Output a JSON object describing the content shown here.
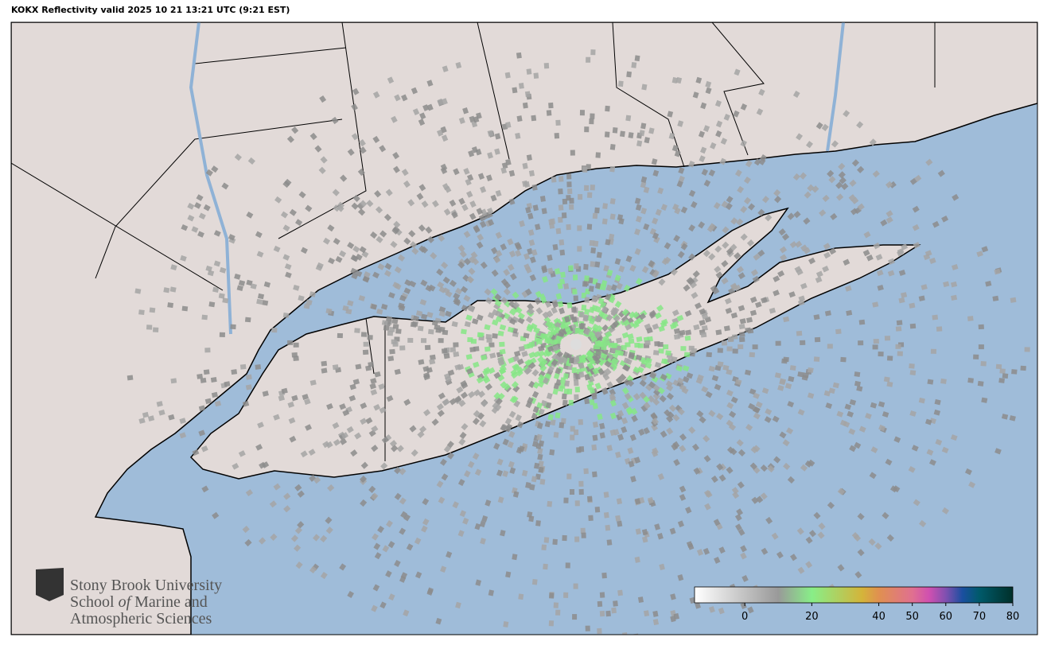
{
  "title": "KOKX Reflectivity valid 2025 10 21 13:21 UTC (9:21 EST)",
  "logo": {
    "line1": "Stony Brook University",
    "line2_parts": [
      "School",
      "of",
      "Marine and"
    ],
    "line3": "Atmospheric Sciences"
  },
  "colorbar": {
    "lim": [
      -15,
      80
    ],
    "ticks": [
      0,
      20,
      40,
      50,
      60,
      70,
      80
    ],
    "stops": [
      {
        "value": -15,
        "color": "#ffffff"
      },
      {
        "value": 10,
        "color": "#999999"
      },
      {
        "value": 20,
        "color": "#88ee88"
      },
      {
        "value": 35,
        "color": "#d4b43a"
      },
      {
        "value": 40,
        "color": "#e09050"
      },
      {
        "value": 50,
        "color": "#e07090"
      },
      {
        "value": 55,
        "color": "#d050b0"
      },
      {
        "value": 60,
        "color": "#8050b0"
      },
      {
        "value": 65,
        "color": "#1a4fa0"
      },
      {
        "value": 70,
        "color": "#005a6a"
      },
      {
        "value": 80,
        "color": "#00302a"
      }
    ]
  }
}
